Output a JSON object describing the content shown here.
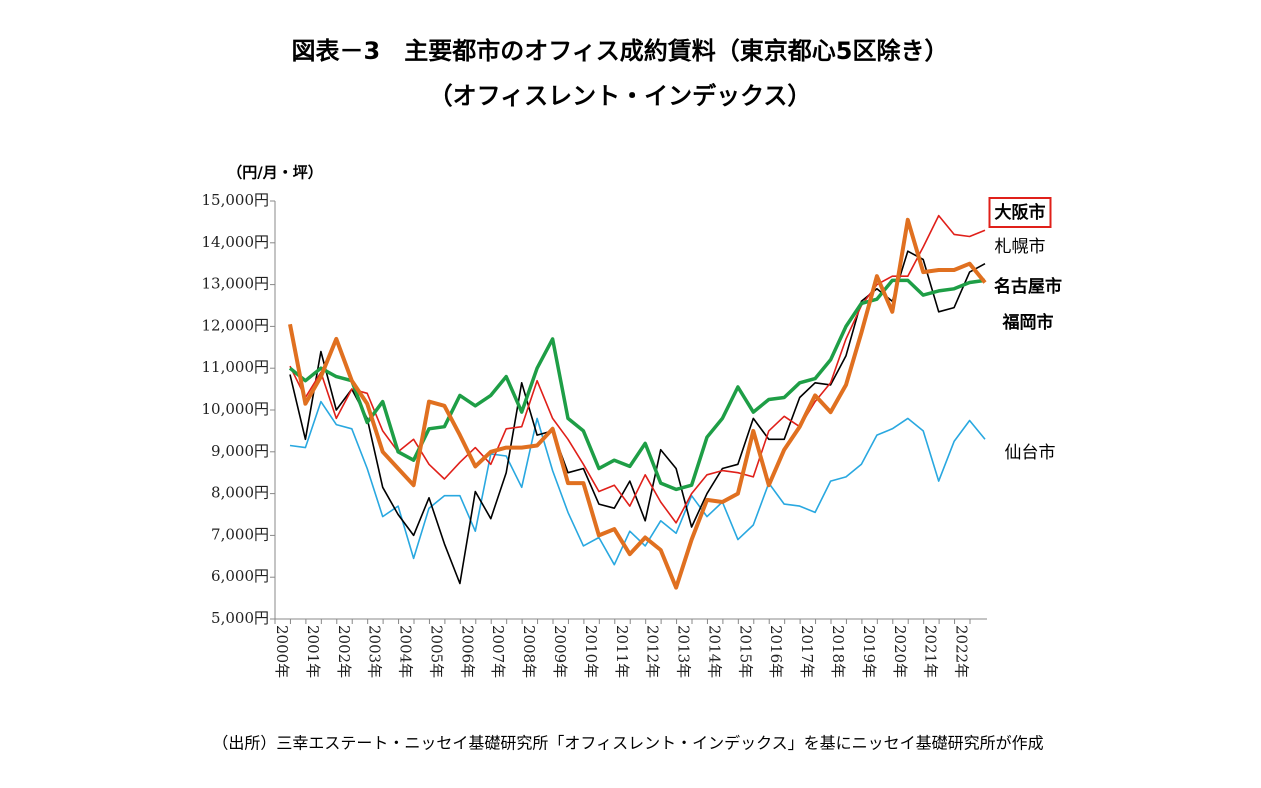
{
  "chart_data": {
    "type": "line",
    "title": "図表－3　主要都市のオフィス成約賃料（東京都心5区除き）",
    "subtitle": "（オフィスレント・インデックス）",
    "y_label": "（円/月・坪）",
    "source": "（出所）三幸エステート・ニッセイ基礎研究所「オフィスレント・インデックス」を基にニッセイ基礎研究所が作成",
    "categories": [
      "2000年",
      null,
      "2001年",
      null,
      "2002年",
      null,
      "2003年",
      null,
      "2004年",
      null,
      "2005年",
      null,
      "2006年",
      null,
      "2007年",
      null,
      "2008年",
      null,
      "2009年",
      null,
      "2010年",
      null,
      "2011年",
      null,
      "2012年",
      null,
      "2013年",
      null,
      "2014年",
      null,
      "2015年",
      null,
      "2016年",
      null,
      "2017年",
      null,
      "2018年",
      null,
      "2019年",
      null,
      "2020年",
      null,
      "2021年",
      null,
      "2022年",
      null
    ],
    "ylim": [
      5000,
      15000
    ],
    "yticks": [
      {
        "value": 5000,
        "label": "5,000円"
      },
      {
        "value": 6000,
        "label": "6,000円"
      },
      {
        "value": 7000,
        "label": "7,000円"
      },
      {
        "value": 8000,
        "label": "8,000円"
      },
      {
        "value": 9000,
        "label": "9,000円"
      },
      {
        "value": 10000,
        "label": "10,000円"
      },
      {
        "value": 11000,
        "label": "11,000円"
      },
      {
        "value": 12000,
        "label": "12,000円"
      },
      {
        "value": 13000,
        "label": "13,000円"
      },
      {
        "value": 14000,
        "label": "14,000円"
      },
      {
        "value": 15000,
        "label": "15,000円"
      }
    ],
    "grid": false,
    "series": [
      {
        "name": "大阪市",
        "color": "#e0201a",
        "values": [
          11050,
          10300,
          10900,
          9800,
          10500,
          10400,
          9500,
          9000,
          9300,
          8700,
          8350,
          8750,
          9100,
          8700,
          9550,
          9600,
          10700,
          9800,
          9300,
          8700,
          8050,
          8200,
          7700,
          8450,
          7800,
          7300,
          8000,
          8450,
          8550,
          8500,
          8400,
          9500,
          9850,
          9600,
          10200,
          10650,
          11700,
          12500,
          13000,
          13200,
          13200,
          13900,
          14650,
          14200,
          14150,
          14300
        ]
      },
      {
        "name": "札幌市",
        "color": "#000000",
        "values": [
          10850,
          9300,
          11400,
          10000,
          10500,
          9800,
          8150,
          7500,
          7000,
          7900,
          6800,
          5850,
          8050,
          7400,
          8500,
          10650,
          9400,
          9500,
          8500,
          8600,
          7750,
          7650,
          8300,
          7350,
          9050,
          8600,
          7200,
          8000,
          8600,
          8700,
          9800,
          9300,
          9300,
          10300,
          10650,
          10600,
          11300,
          12600,
          12900,
          12600,
          13800,
          13600,
          12350,
          12450,
          13300,
          13500
        ]
      },
      {
        "name": "名古屋市",
        "color": "#1e9e46",
        "values": [
          11000,
          10700,
          11000,
          10800,
          10700,
          9700,
          10200,
          9000,
          8800,
          9550,
          9600,
          10350,
          10100,
          10350,
          10800,
          9950,
          11000,
          11700,
          9800,
          9500,
          8600,
          8800,
          8650,
          9200,
          8250,
          8100,
          8200,
          9350,
          9800,
          10550,
          9950,
          10250,
          10300,
          10650,
          10750,
          11200,
          12000,
          12550,
          12650,
          13100,
          13100,
          12750,
          12850,
          12900,
          13050,
          13100
        ]
      },
      {
        "name": "福岡市",
        "color": "#e07020",
        "values": [
          12050,
          10150,
          10800,
          11700,
          10700,
          10150,
          9000,
          8600,
          8200,
          10200,
          10100,
          9400,
          8650,
          9000,
          9100,
          9100,
          9150,
          9550,
          8250,
          8250,
          7000,
          7150,
          6550,
          6950,
          6650,
          5750,
          6900,
          7850,
          7800,
          8000,
          9500,
          8200,
          9050,
          9600,
          10350,
          9950,
          10600,
          11850,
          13200,
          12350,
          14550,
          13300,
          13350,
          13350,
          13500,
          13050
        ]
      },
      {
        "name": "仙台市",
        "color": "#29a8e0",
        "values": [
          9150,
          9100,
          10200,
          9650,
          9550,
          8600,
          7450,
          7700,
          6450,
          7650,
          7950,
          7950,
          7100,
          8950,
          8900,
          8150,
          9800,
          8550,
          7550,
          6750,
          6950,
          6300,
          7100,
          6750,
          7350,
          7050,
          7950,
          7450,
          7800,
          6900,
          7250,
          8250,
          7750,
          7700,
          7550,
          8300,
          8400,
          8700,
          9400,
          9550,
          9800,
          9500,
          8300,
          9250,
          9750,
          9300
        ]
      }
    ]
  }
}
